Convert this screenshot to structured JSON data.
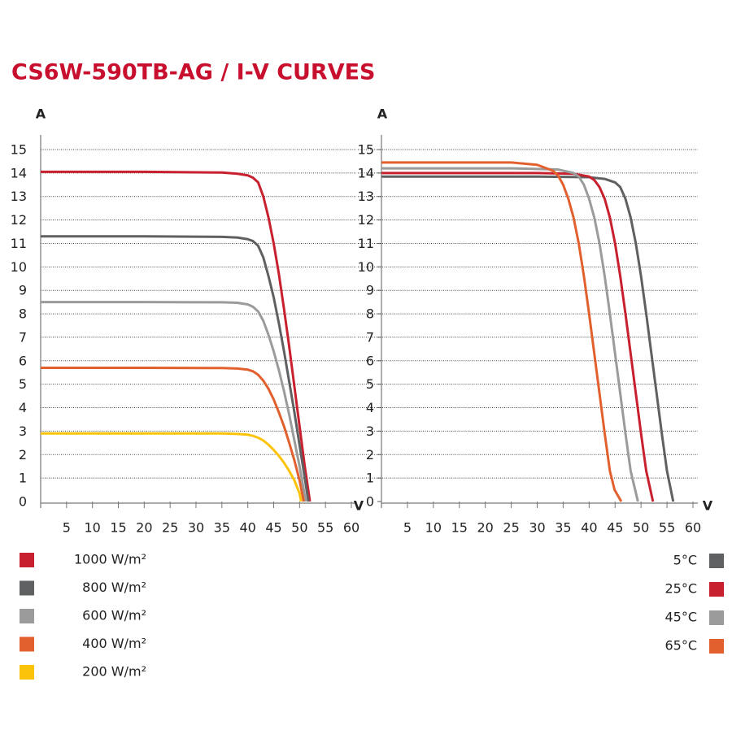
{
  "title": "CS6W-590TB-AG / I-V CURVES",
  "chart_data": [
    {
      "type": "line",
      "y_label": "A",
      "x_label": "V",
      "xlim": [
        0,
        60
      ],
      "ylim": [
        0,
        15
      ],
      "xticks": [
        5,
        10,
        15,
        20,
        25,
        30,
        35,
        40,
        45,
        50,
        55,
        60
      ],
      "yticks": [
        0,
        1,
        2,
        3,
        4,
        5,
        6,
        7,
        8,
        9,
        10,
        11,
        12,
        13,
        14,
        15
      ],
      "grid": true,
      "legend": "bottom-left",
      "series": [
        {
          "name": "1000 W/m²",
          "color": "#c8202f",
          "x": [
            0,
            20,
            35,
            38,
            40,
            41,
            42,
            43,
            44,
            45,
            46,
            47,
            48,
            49,
            50,
            51,
            52
          ],
          "values": [
            14.05,
            14.05,
            14.02,
            13.97,
            13.9,
            13.8,
            13.6,
            13.0,
            12.1,
            11.0,
            9.7,
            8.2,
            6.6,
            4.9,
            3.2,
            1.5,
            0
          ]
        },
        {
          "name": "800 W/m²",
          "color": "#5f6062",
          "x": [
            0,
            20,
            35,
            38,
            40,
            41,
            42,
            43,
            44,
            45,
            46,
            47,
            48,
            49,
            50,
            51,
            51.7
          ],
          "values": [
            11.3,
            11.3,
            11.28,
            11.25,
            11.18,
            11.1,
            10.9,
            10.4,
            9.6,
            8.7,
            7.6,
            6.4,
            5.1,
            3.8,
            2.4,
            1.0,
            0
          ]
        },
        {
          "name": "600 W/m²",
          "color": "#9b9b9b",
          "x": [
            0,
            20,
            35,
            38,
            40,
            41,
            42,
            43,
            44,
            45,
            46,
            47,
            48,
            49,
            50,
            51.2
          ],
          "values": [
            8.5,
            8.5,
            8.49,
            8.47,
            8.4,
            8.3,
            8.1,
            7.7,
            7.1,
            6.4,
            5.6,
            4.7,
            3.7,
            2.6,
            1.5,
            0
          ]
        },
        {
          "name": "400 W/m²",
          "color": "#e2602d",
          "x": [
            0,
            20,
            35,
            38,
            40,
            41,
            42,
            43,
            44,
            45,
            46,
            47,
            48,
            49,
            50,
            50.8
          ],
          "values": [
            5.7,
            5.7,
            5.69,
            5.67,
            5.62,
            5.55,
            5.4,
            5.15,
            4.8,
            4.35,
            3.8,
            3.2,
            2.5,
            1.75,
            0.9,
            0
          ]
        },
        {
          "name": "200 W/m²",
          "color": "#fcc30b",
          "x": [
            0,
            20,
            35,
            38,
            40,
            41,
            42,
            43,
            44,
            45,
            46,
            47,
            48,
            49,
            50,
            50.3
          ],
          "values": [
            2.9,
            2.9,
            2.9,
            2.88,
            2.85,
            2.8,
            2.72,
            2.6,
            2.42,
            2.2,
            1.95,
            1.65,
            1.3,
            0.9,
            0.35,
            0
          ]
        }
      ]
    },
    {
      "type": "line",
      "y_label": "A",
      "x_label": "V",
      "xlim": [
        0,
        60
      ],
      "ylim": [
        0,
        15
      ],
      "xticks": [
        5,
        10,
        15,
        20,
        25,
        30,
        35,
        40,
        45,
        50,
        55,
        60
      ],
      "yticks": [
        0,
        1,
        2,
        3,
        4,
        5,
        6,
        7,
        8,
        9,
        10,
        11,
        12,
        13,
        14,
        15
      ],
      "grid": true,
      "legend": "bottom-right",
      "series": [
        {
          "name": "5°C",
          "color": "#5f6062",
          "x": [
            0,
            30,
            40,
            43,
            45,
            46,
            47,
            48,
            49,
            50,
            51,
            52,
            53,
            54,
            55,
            56.2
          ],
          "values": [
            13.85,
            13.85,
            13.82,
            13.75,
            13.6,
            13.4,
            12.9,
            12.1,
            11.0,
            9.6,
            8.0,
            6.3,
            4.6,
            2.9,
            1.3,
            0
          ]
        },
        {
          "name": "25°C",
          "color": "#c8202f",
          "x": [
            0,
            30,
            37,
            40,
            41,
            42,
            43,
            44,
            45,
            46,
            47,
            48,
            49,
            50,
            51,
            52.3
          ],
          "values": [
            14.0,
            14.0,
            13.97,
            13.85,
            13.7,
            13.4,
            12.9,
            12.1,
            11.0,
            9.6,
            8.0,
            6.3,
            4.6,
            2.9,
            1.3,
            0
          ]
        },
        {
          "name": "45°C",
          "color": "#9b9b9b",
          "x": [
            0,
            25,
            34,
            37,
            38,
            39,
            40,
            41,
            42,
            43,
            44,
            45,
            46,
            47,
            48,
            49.4
          ],
          "values": [
            14.2,
            14.2,
            14.15,
            14.0,
            13.85,
            13.5,
            12.9,
            12.1,
            11.0,
            9.6,
            8.0,
            6.3,
            4.6,
            2.9,
            1.3,
            0
          ]
        },
        {
          "name": "65°C",
          "color": "#e2602d",
          "x": [
            0,
            25,
            30,
            33,
            34,
            35,
            36,
            37,
            38,
            39,
            40,
            41,
            42,
            43,
            44,
            44.9,
            46.2
          ],
          "values": [
            14.45,
            14.45,
            14.35,
            14.1,
            13.9,
            13.5,
            12.9,
            12.1,
            11.0,
            9.6,
            8.0,
            6.3,
            4.6,
            2.9,
            1.3,
            0.5,
            0
          ]
        }
      ]
    }
  ]
}
